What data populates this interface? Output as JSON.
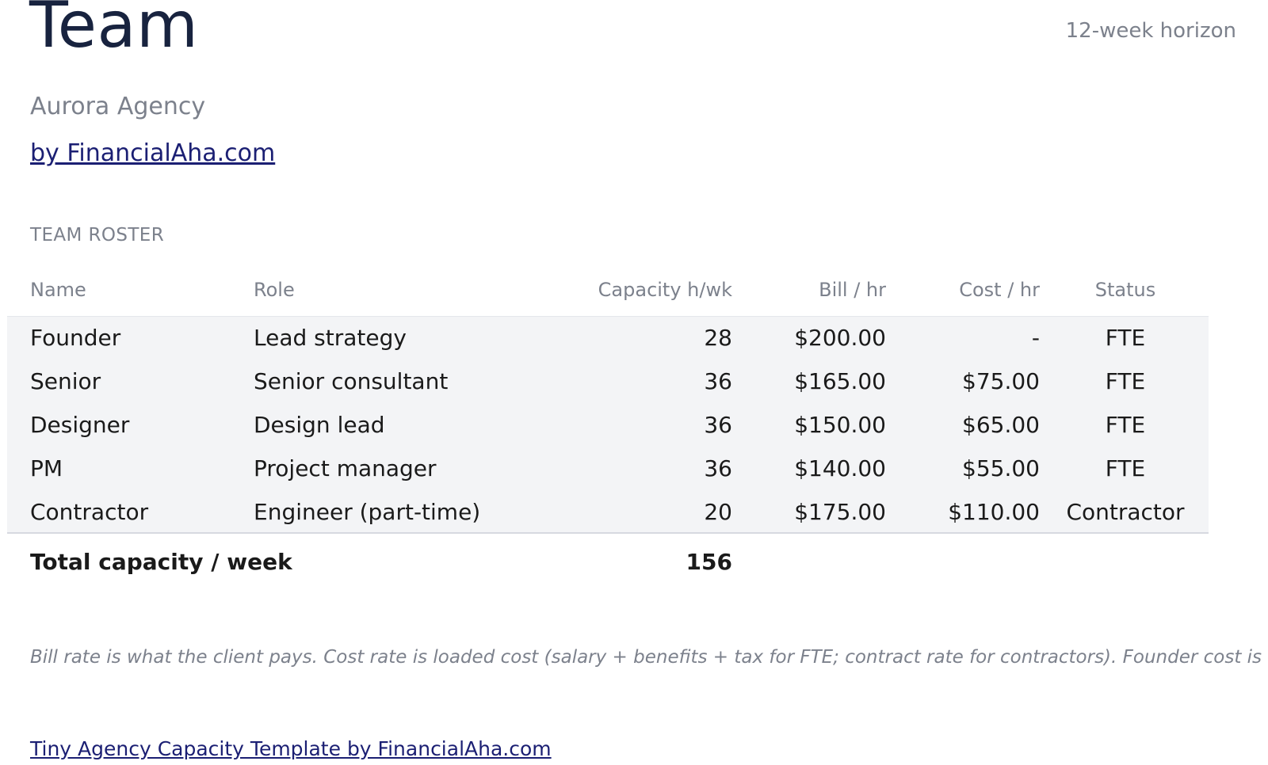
{
  "header": {
    "title": "Team",
    "horizon": "12-week horizon",
    "subtitle": "Aurora Agency",
    "byline": "by FinancialAha.com"
  },
  "roster": {
    "section_label": "TEAM ROSTER",
    "columns": {
      "name": "Name",
      "role": "Role",
      "capacity": "Capacity h/wk",
      "bill": "Bill / hr",
      "cost": "Cost / hr",
      "status": "Status"
    },
    "rows": [
      {
        "name": "Founder",
        "role": "Lead strategy",
        "capacity": "28",
        "bill": "$200.00",
        "cost": "-",
        "status": "FTE"
      },
      {
        "name": "Senior",
        "role": "Senior consultant",
        "capacity": "36",
        "bill": "$165.00",
        "cost": "$75.00",
        "status": "FTE"
      },
      {
        "name": "Designer",
        "role": "Design lead",
        "capacity": "36",
        "bill": "$150.00",
        "cost": "$65.00",
        "status": "FTE"
      },
      {
        "name": "PM",
        "role": "Project manager",
        "capacity": "36",
        "bill": "$140.00",
        "cost": "$55.00",
        "status": "FTE"
      },
      {
        "name": "Contractor",
        "role": "Engineer (part-time)",
        "capacity": "20",
        "bill": "$175.00",
        "cost": "$110.00",
        "status": "Contractor"
      }
    ],
    "total": {
      "label": "Total capacity / week",
      "value": "156"
    }
  },
  "note": "Bill rate is what the client pays. Cost rate is loaded cost (salary + benefits + tax for FTE; contract rate for contractors). Founder cost is of",
  "footer": {
    "link_text": "Tiny Agency Capacity Template by FinancialAha.com"
  }
}
